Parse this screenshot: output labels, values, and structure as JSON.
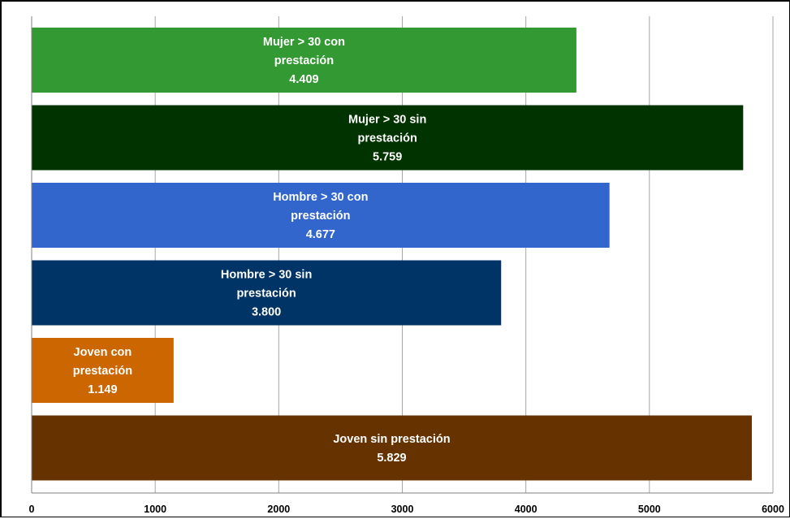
{
  "chart_data": {
    "type": "bar",
    "orientation": "horizontal",
    "title": "",
    "xlabel": "",
    "ylabel": "",
    "xlim": [
      0,
      6000
    ],
    "x_ticks": [
      "0",
      "1000",
      "2000",
      "3000",
      "4000",
      "5000",
      "6000"
    ],
    "tick_values": [
      0,
      1000,
      2000,
      3000,
      4000,
      5000,
      6000
    ],
    "grid": true,
    "legend": "none",
    "bars": [
      {
        "label_lines": [
          "Mujer > 30 con",
          "prestación",
          "4.409"
        ],
        "value": 4409,
        "color": "#339933"
      },
      {
        "label_lines": [
          "Mujer > 30 sin",
          "prestación",
          "5.759"
        ],
        "value": 5759,
        "color": "#003300"
      },
      {
        "label_lines": [
          "Hombre > 30 con",
          "prestación",
          "4.677"
        ],
        "value": 4677,
        "color": "#3366cc"
      },
      {
        "label_lines": [
          "Hombre > 30 sin",
          "prestación",
          "3.800"
        ],
        "value": 3800,
        "color": "#003366"
      },
      {
        "label_lines": [
          "Joven con",
          "prestación",
          "1.149"
        ],
        "value": 1149,
        "color": "#cc6600"
      },
      {
        "label_lines": [
          "Joven sin prestación",
          "5.829"
        ],
        "value": 5829,
        "color": "#663300"
      }
    ]
  }
}
